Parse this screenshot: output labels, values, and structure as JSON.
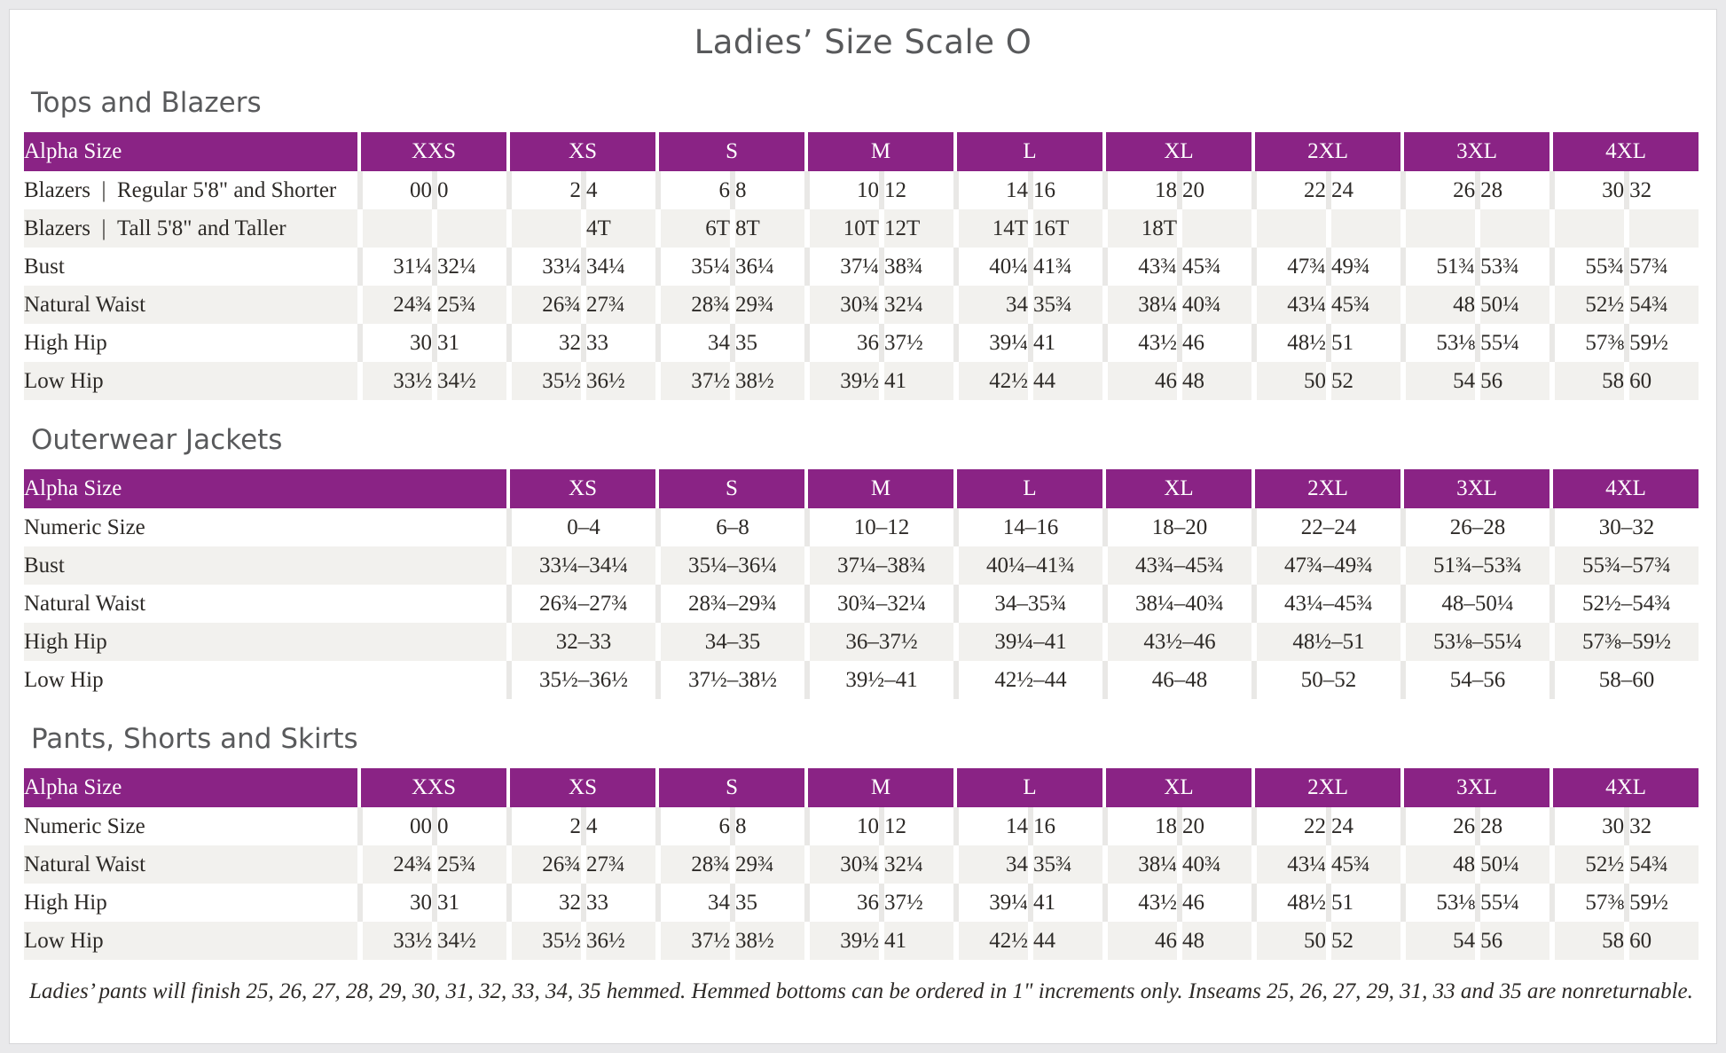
{
  "page": {
    "title": "Ladies’ Size Scale O",
    "footnote": "Ladies’ pants will finish 25, 26, 27, 28, 29, 30, 31, 32, 33, 34, 35 hemmed. Hemmed bottoms can be ordered in 1\" increments only. Inseams 25, 26, 27, 29, 31, 33 and 35 are nonreturnable."
  },
  "colors": {
    "header_purple": "#8a2385",
    "row_stripe": "#f2f1ee",
    "gutter_gray": "#e9e8e6",
    "heading_gray": "#595a5c",
    "text_dark": "#2d2a27",
    "page_margin": "#e9e9eb"
  },
  "tables": [
    {
      "section_title": "Tops and Blazers",
      "type": "paired",
      "header_label": "Alpha Size",
      "sizes": [
        "XXS",
        "XS",
        "S",
        "M",
        "L",
        "XL",
        "2XL",
        "3XL",
        "4XL"
      ],
      "rows": [
        {
          "label": "Blazers | Regular 5'8\" and Shorter",
          "values": [
            [
              "00",
              "0"
            ],
            [
              "2",
              "4"
            ],
            [
              "6",
              "8"
            ],
            [
              "10",
              "12"
            ],
            [
              "14",
              "16"
            ],
            [
              "18",
              "20"
            ],
            [
              "22",
              "24"
            ],
            [
              "26",
              "28"
            ],
            [
              "30",
              "32"
            ]
          ]
        },
        {
          "label": "Blazers | Tall 5'8\" and Taller",
          "values": [
            [
              "",
              ""
            ],
            [
              "",
              "4T"
            ],
            [
              "6T",
              "8T"
            ],
            [
              "10T",
              "12T"
            ],
            [
              "14T",
              "16T"
            ],
            [
              "18T",
              ""
            ],
            [
              "",
              ""
            ],
            [
              "",
              ""
            ],
            [
              "",
              ""
            ]
          ]
        },
        {
          "label": "Bust",
          "values": [
            [
              "31¼",
              "32¼"
            ],
            [
              "33¼",
              "34¼"
            ],
            [
              "35¼",
              "36¼"
            ],
            [
              "37¼",
              "38¾"
            ],
            [
              "40¼",
              "41¾"
            ],
            [
              "43¾",
              "45¾"
            ],
            [
              "47¾",
              "49¾"
            ],
            [
              "51¾",
              "53¾"
            ],
            [
              "55¾",
              "57¾"
            ]
          ]
        },
        {
          "label": "Natural Waist",
          "values": [
            [
              "24¾",
              "25¾"
            ],
            [
              "26¾",
              "27¾"
            ],
            [
              "28¾",
              "29¾"
            ],
            [
              "30¾",
              "32¼"
            ],
            [
              "34",
              "35¾"
            ],
            [
              "38¼",
              "40¾"
            ],
            [
              "43¼",
              "45¾"
            ],
            [
              "48",
              "50¼"
            ],
            [
              "52½",
              "54¾"
            ]
          ]
        },
        {
          "label": "High Hip",
          "values": [
            [
              "30",
              "31"
            ],
            [
              "32",
              "33"
            ],
            [
              "34",
              "35"
            ],
            [
              "36",
              "37½"
            ],
            [
              "39¼",
              "41"
            ],
            [
              "43½",
              "46"
            ],
            [
              "48½",
              "51"
            ],
            [
              "53⅛",
              "55¼"
            ],
            [
              "57⅜",
              "59½"
            ]
          ]
        },
        {
          "label": "Low Hip",
          "values": [
            [
              "33½",
              "34½"
            ],
            [
              "35½",
              "36½"
            ],
            [
              "37½",
              "38½"
            ],
            [
              "39½",
              "41"
            ],
            [
              "42½",
              "44"
            ],
            [
              "46",
              "48"
            ],
            [
              "50",
              "52"
            ],
            [
              "54",
              "56"
            ],
            [
              "58",
              "60"
            ]
          ]
        }
      ]
    },
    {
      "section_title": "Outerwear Jackets",
      "type": "single",
      "header_label": "Alpha Size",
      "sizes": [
        "XS",
        "S",
        "M",
        "L",
        "XL",
        "2XL",
        "3XL",
        "4XL"
      ],
      "rows": [
        {
          "label": "Numeric Size",
          "values": [
            "0–4",
            "6–8",
            "10–12",
            "14–16",
            "18–20",
            "22–24",
            "26–28",
            "30–32"
          ]
        },
        {
          "label": "Bust",
          "values": [
            "33¼–34¼",
            "35¼–36¼",
            "37¼–38¾",
            "40¼–41¾",
            "43¾–45¾",
            "47¾–49¾",
            "51¾–53¾",
            "55¾–57¾"
          ]
        },
        {
          "label": "Natural Waist",
          "values": [
            "26¾–27¾",
            "28¾–29¾",
            "30¾–32¼",
            "34–35¾",
            "38¼–40¾",
            "43¼–45¾",
            "48–50¼",
            "52½–54¾"
          ]
        },
        {
          "label": "High Hip",
          "values": [
            "32–33",
            "34–35",
            "36–37½",
            "39¼–41",
            "43½–46",
            "48½–51",
            "53⅛–55¼",
            "57⅜–59½"
          ]
        },
        {
          "label": "Low Hip",
          "values": [
            "35½–36½",
            "37½–38½",
            "39½–41",
            "42½–44",
            "46–48",
            "50–52",
            "54–56",
            "58–60"
          ]
        }
      ]
    },
    {
      "section_title": "Pants, Shorts and Skirts",
      "type": "paired",
      "header_label": "Alpha Size",
      "sizes": [
        "XXS",
        "XS",
        "S",
        "M",
        "L",
        "XL",
        "2XL",
        "3XL",
        "4XL"
      ],
      "rows": [
        {
          "label": "Numeric Size",
          "values": [
            [
              "00",
              "0"
            ],
            [
              "2",
              "4"
            ],
            [
              "6",
              "8"
            ],
            [
              "10",
              "12"
            ],
            [
              "14",
              "16"
            ],
            [
              "18",
              "20"
            ],
            [
              "22",
              "24"
            ],
            [
              "26",
              "28"
            ],
            [
              "30",
              "32"
            ]
          ]
        },
        {
          "label": "Natural Waist",
          "values": [
            [
              "24¾",
              "25¾"
            ],
            [
              "26¾",
              "27¾"
            ],
            [
              "28¾",
              "29¾"
            ],
            [
              "30¾",
              "32¼"
            ],
            [
              "34",
              "35¾"
            ],
            [
              "38¼",
              "40¾"
            ],
            [
              "43¼",
              "45¾"
            ],
            [
              "48",
              "50¼"
            ],
            [
              "52½",
              "54¾"
            ]
          ]
        },
        {
          "label": "High Hip",
          "values": [
            [
              "30",
              "31"
            ],
            [
              "32",
              "33"
            ],
            [
              "34",
              "35"
            ],
            [
              "36",
              "37½"
            ],
            [
              "39¼",
              "41"
            ],
            [
              "43½",
              "46"
            ],
            [
              "48½",
              "51"
            ],
            [
              "53⅛",
              "55¼"
            ],
            [
              "57⅜",
              "59½"
            ]
          ]
        },
        {
          "label": "Low Hip",
          "values": [
            [
              "33½",
              "34½"
            ],
            [
              "35½",
              "36½"
            ],
            [
              "37½",
              "38½"
            ],
            [
              "39½",
              "41"
            ],
            [
              "42½",
              "44"
            ],
            [
              "46",
              "48"
            ],
            [
              "50",
              "52"
            ],
            [
              "54",
              "56"
            ],
            [
              "58",
              "60"
            ]
          ]
        }
      ]
    }
  ]
}
